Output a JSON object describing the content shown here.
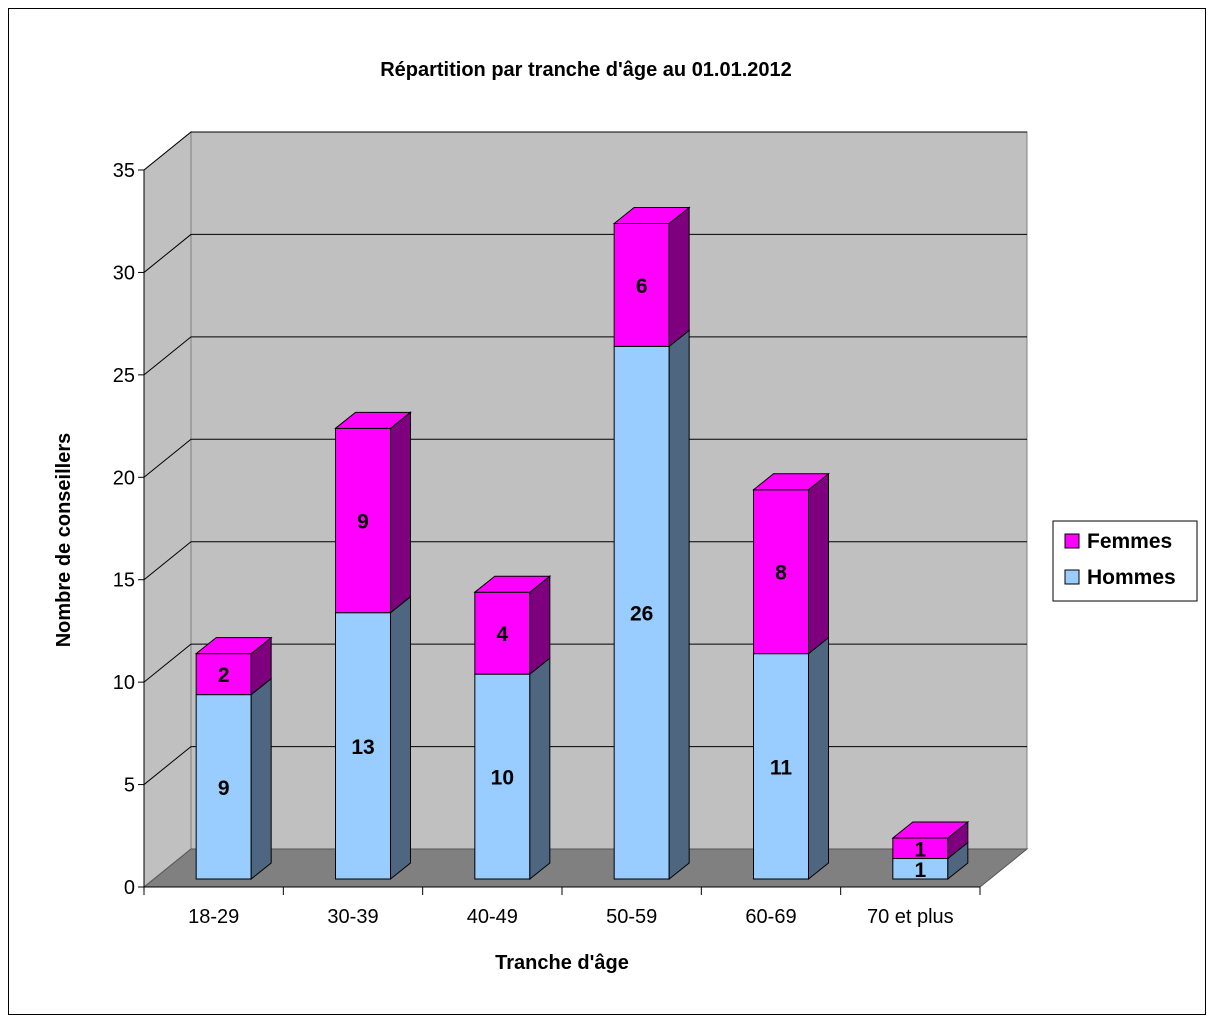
{
  "chart_data": {
    "type": "bar",
    "stacked": true,
    "three_d": true,
    "title": "Répartition par tranche d'âge au 01.01.2012",
    "xlabel": "Tranche d'âge",
    "ylabel": "Nombre de conseillers",
    "categories": [
      "18-29",
      "30-39",
      "40-49",
      "50-59",
      "60-69",
      "70 et plus"
    ],
    "ylim": [
      0,
      35
    ],
    "yticks": [
      0,
      5,
      10,
      15,
      20,
      25,
      30,
      35
    ],
    "grid": true,
    "legend_position": "right",
    "series": [
      {
        "name": "Hommes",
        "values": [
          9,
          13,
          10,
          26,
          11,
          1
        ],
        "color": "#99ccff",
        "side_color": "#4e667f"
      },
      {
        "name": "Femmes",
        "values": [
          2,
          9,
          4,
          6,
          8,
          1
        ],
        "color": "#ff00ff",
        "side_color": "#7f007f"
      }
    ],
    "legend_order": [
      "Femmes",
      "Hommes"
    ],
    "wall_color": "#c0c0c0",
    "floor_color": "#808080"
  }
}
